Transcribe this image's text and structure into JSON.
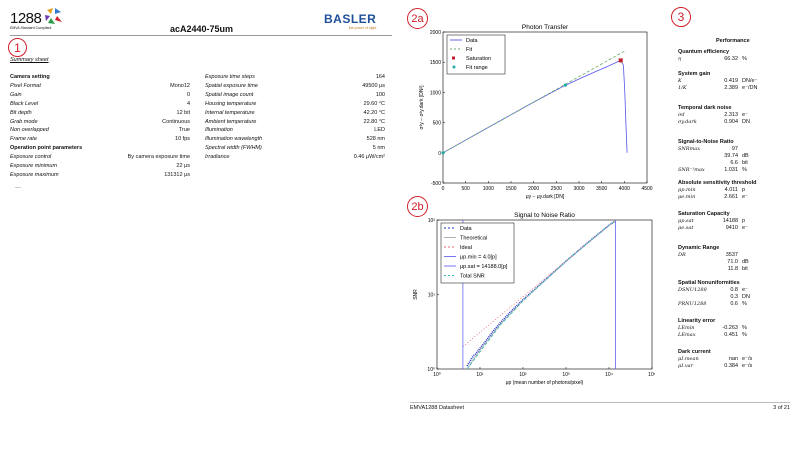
{
  "left_page": {
    "logo_number": "1288",
    "logo_caption": "EMVA Standard Compliant",
    "title": "acA2440-75um",
    "brand": "BASLER",
    "brand_tagline": "the power of sight",
    "marker": "1",
    "section_title": "Summary sheet",
    "left_rows": [
      {
        "label": "Camera setting",
        "value": "",
        "heading": true
      },
      {
        "label": "Pixel Format",
        "value": "Mono12"
      },
      {
        "label": "Gain",
        "value": "0"
      },
      {
        "label": "Black Level",
        "value": "4"
      },
      {
        "label": "Bit depth",
        "value": "12 bit"
      },
      {
        "label": "Grab mode",
        "value": "Continuous"
      },
      {
        "label": "Non overlapped",
        "value": "True"
      },
      {
        "label": "Frame rate",
        "value": "10 fps"
      },
      {
        "label": "Operation point parameters",
        "value": "",
        "heading": true
      },
      {
        "label": "Exposure control",
        "value": "By camera exposure time"
      },
      {
        "label": "Exposure minimum",
        "value": "22 μs"
      },
      {
        "label": "Exposure maximum",
        "value": "131312 μs"
      }
    ],
    "right_rows": [
      {
        "label": "Exposure time steps",
        "value": "164"
      },
      {
        "label": "Spatial exposure time",
        "value": "49500 μs"
      },
      {
        "label": "Spatial image count",
        "value": "100"
      },
      {
        "label": "Housing temperature",
        "value": "29.60 °C"
      },
      {
        "label": "Internal temperature",
        "value": "42.20 °C"
      },
      {
        "label": "Ambient temperature",
        "value": "22.80 °C"
      },
      {
        "label": "Illumination",
        "value": "LED"
      },
      {
        "label": "Illumination wavelength",
        "value": "528 nm"
      },
      {
        "label": "Spectral width (FWHM)",
        "value": "5 nm"
      },
      {
        "label": "Irradiance",
        "value": "0.46 μW/cm²"
      }
    ]
  },
  "right_page": {
    "marker_a": "2a",
    "marker_b": "2b",
    "marker_c": "3",
    "footer_left": "EMVA1288 Datasheet",
    "footer_right": "3 of 21",
    "performance_title": "Performance",
    "performance": [
      {
        "title": "Quantum efficiency",
        "rows": [
          {
            "label": "η",
            "value": "66.32",
            "unit": "%"
          }
        ]
      },
      {
        "title": "System gain",
        "rows": [
          {
            "label": "K",
            "value": "0.419",
            "unit": "DN/e⁻"
          },
          {
            "label": "1/K",
            "value": "2.389",
            "unit": "e⁻/DN"
          }
        ]
      },
      {
        "title": "Temporal dark noise",
        "rows": [
          {
            "label": "σd",
            "value": "2.313",
            "unit": "e⁻"
          },
          {
            "label": "σy.dark",
            "value": "0.904",
            "unit": "DN"
          }
        ]
      },
      {
        "title": "Signal-to-Noise Ratio",
        "rows": [
          {
            "label": "SNRmax",
            "value": "97",
            "unit": ""
          },
          {
            "label": "",
            "value": "39.74",
            "unit": "dB"
          },
          {
            "label": "",
            "value": "6.6",
            "unit": "bit"
          },
          {
            "label": "SNR⁻¹max",
            "value": "1.031",
            "unit": "%"
          }
        ]
      },
      {
        "title": "Absolute sensitivity threshold",
        "rows": [
          {
            "label": "μp.min",
            "value": "4.011",
            "unit": "p"
          },
          {
            "label": "μe.min",
            "value": "2.661",
            "unit": "e⁻"
          }
        ]
      },
      {
        "title": "Saturation Capacity",
        "rows": [
          {
            "label": "μp.sat",
            "value": "14188",
            "unit": "p"
          },
          {
            "label": "μe.sat",
            "value": "9410",
            "unit": "e⁻"
          }
        ]
      },
      {
        "title": "Dynamic Range",
        "rows": [
          {
            "label": "DR",
            "value": "3537",
            "unit": ""
          },
          {
            "label": "",
            "value": "71.0",
            "unit": "dB"
          },
          {
            "label": "",
            "value": "11.8",
            "unit": "bit"
          }
        ]
      },
      {
        "title": "Spatial Nonuniformities",
        "rows": [
          {
            "label": "DSNU1288",
            "value": "0.8",
            "unit": "e⁻"
          },
          {
            "label": "",
            "value": "0.3",
            "unit": "DN"
          },
          {
            "label": "PRNU1288",
            "value": "0.6",
            "unit": "%"
          }
        ]
      },
      {
        "title": "Linearity error",
        "rows": [
          {
            "label": "LEmin",
            "value": "-0.263",
            "unit": "%"
          },
          {
            "label": "LEmax",
            "value": "0.451",
            "unit": "%"
          }
        ]
      },
      {
        "title": "Dark current",
        "rows": [
          {
            "label": "μI.mean",
            "value": "nan",
            "unit": "e⁻/s"
          },
          {
            "label": "μI.var",
            "value": "0.384",
            "unit": "e⁻/s"
          }
        ]
      }
    ]
  },
  "chart_data": [
    {
      "type": "line",
      "title": "Photon Transfer",
      "xlabel": "μy − μy.dark [DN]",
      "ylabel": "σ²y − σ²y.dark [DN²]",
      "xlim": [
        0,
        4500
      ],
      "ylim": [
        -500,
        2000
      ],
      "xticks": [
        "0",
        "500",
        "1000",
        "1500",
        "2000",
        "2500",
        "3000",
        "3500",
        "4000",
        "4500"
      ],
      "yticks": [
        "-500",
        "0",
        "500",
        "1000",
        "1500",
        "2000"
      ],
      "legend": [
        "Data",
        "Fit",
        "Saturation",
        "Fit range"
      ],
      "series": [
        {
          "name": "Data",
          "color": "#5555ee",
          "x": [
            0,
            1000,
            2000,
            2700,
            3200,
            3600,
            3920,
            3980,
            4010,
            4040,
            4060
          ],
          "y": [
            0,
            420,
            840,
            1120,
            1290,
            1420,
            1530,
            1450,
            1000,
            400,
            0
          ]
        },
        {
          "name": "Fit",
          "color": "#66aa66",
          "x": [
            0,
            4000
          ],
          "y": [
            0,
            1680
          ]
        },
        {
          "name": "Saturation",
          "color": "#c0202a",
          "x": [
            3920
          ],
          "y": [
            1530
          ]
        },
        {
          "name": "Fit range",
          "color": "#22aaaa",
          "x": [
            0,
            2700
          ],
          "y": [
            0,
            1120
          ]
        }
      ]
    },
    {
      "type": "line",
      "title": "Signal to Noise Ratio",
      "xlabel": "μp (mean number of photons/pixel)",
      "ylabel": "SNR",
      "xscale": "log",
      "yscale": "log",
      "xlim": [
        1,
        100000
      ],
      "ylim": [
        1,
        100
      ],
      "xticks": [
        "10⁰",
        "10¹",
        "10²",
        "10³",
        "10⁴",
        "10⁵"
      ],
      "yticks": [
        "10⁰",
        "10¹",
        "10²"
      ],
      "legend": [
        "Data",
        "Theoretical",
        "Ideal",
        "μp.min = 4.0[p]",
        "μp.sat = 14188.0[p]",
        "Total SNR"
      ],
      "series": [
        {
          "name": "Data",
          "color": "#2233cc",
          "x": [
            5,
            6,
            7,
            8,
            10,
            13,
            20,
            30,
            50,
            100,
            300,
            1000,
            3000,
            10000,
            14188
          ],
          "y": [
            1.1,
            1.3,
            1.5,
            1.6,
            1.9,
            2.3,
            3.2,
            4.2,
            5.8,
            8.5,
            15,
            28,
            48,
            85,
            97
          ]
        },
        {
          "name": "Theoretical",
          "color": "#aaaaaa",
          "x": [
            5,
            10,
            30,
            100,
            1000,
            10000,
            14188
          ],
          "y": [
            1.0,
            1.8,
            4.0,
            8.3,
            28,
            85,
            97
          ]
        },
        {
          "name": "Ideal",
          "color": "#ee6666",
          "x": [
            4,
            14188
          ],
          "y": [
            2,
            119
          ]
        },
        {
          "name": "μp.min = 4.0[p]",
          "color": "#6666ee",
          "x": [
            4,
            4
          ],
          "y": [
            1,
            100
          ]
        },
        {
          "name": "μp.sat = 14188.0[p]",
          "color": "#6666ee",
          "x": [
            14188,
            14188
          ],
          "y": [
            1,
            100
          ]
        },
        {
          "name": "Total SNR",
          "color": "#33bbbb",
          "x": [
            5,
            10,
            30,
            100,
            1000,
            10000,
            14188
          ],
          "y": [
            1.0,
            1.7,
            3.9,
            8.2,
            28,
            85,
            97
          ]
        }
      ]
    }
  ]
}
